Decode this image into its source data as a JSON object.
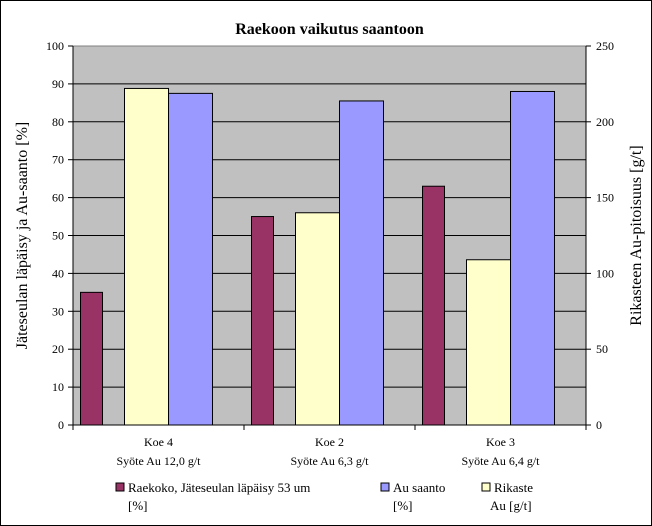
{
  "chart_data": {
    "type": "bar",
    "title": "Raekoon vaikutus saantoon",
    "ylabel_left": "Jäteseulan läpäisy ja Au-saanto [%]",
    "ylabel_right": "Rikasteen Au-pitoisuus [g/t]",
    "ylim_left": [
      0,
      100
    ],
    "ylim_right": [
      0,
      250
    ],
    "yticks_left": [
      "0",
      "10",
      "20",
      "30",
      "40",
      "50",
      "60",
      "70",
      "80",
      "90",
      "100"
    ],
    "yticks_right": [
      "0",
      "50",
      "100",
      "150",
      "200",
      "250"
    ],
    "grid": true,
    "legend_position": "bottom",
    "categories": [
      {
        "line1": "Koe 4",
        "line2": "Syöte Au 12,0 g/t"
      },
      {
        "line1": "Koe 2",
        "line2": "Syöte Au 6,3 g/t"
      },
      {
        "line1": "Koe 3",
        "line2": "Syöte Au 6,4 g/t"
      }
    ],
    "series": [
      {
        "name": "Raekoko, Jäteseulan läpäisy 53 um [%]",
        "legend_line1": "Raekoko, Jäteseulan läpäisy  53 um",
        "legend_line2": "[%]",
        "axis": "left",
        "color": "#993366",
        "values": [
          35,
          55,
          63
        ]
      },
      {
        "name": "Rikaste Au [g/t]",
        "legend_line1": "Rikaste",
        "legend_line2": "Au [g/t]",
        "axis": "right",
        "color": "#ffffcc",
        "values": [
          222,
          140,
          109
        ]
      },
      {
        "name": "Au saanto [%]",
        "legend_line1": "Au saanto",
        "legend_line2": "[%]",
        "axis": "left",
        "color": "#9999ff",
        "values": [
          87.5,
          85.5,
          88
        ]
      }
    ],
    "colors": {
      "plot_background": "#c0c0c0",
      "grid": "#000000"
    }
  }
}
